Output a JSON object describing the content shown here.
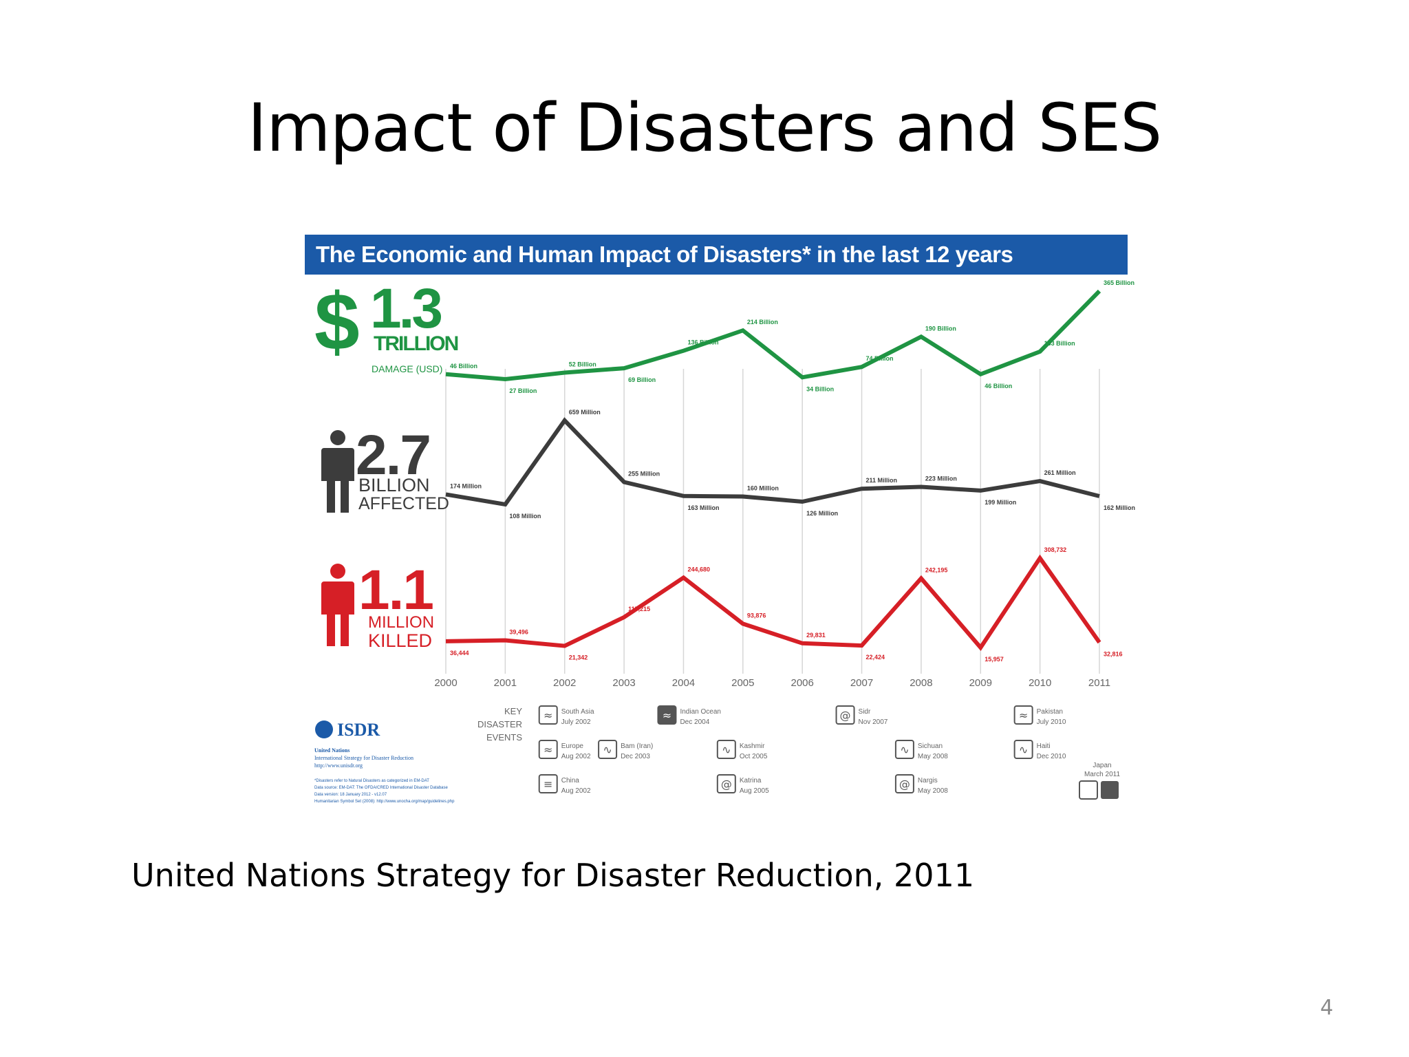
{
  "slide": {
    "title": "Impact of Disasters and SES",
    "caption": "United Nations Strategy for Disaster Reduction, 2011",
    "page_number": "4"
  },
  "chart_data": {
    "type": "line",
    "title": "The Economic and Human Impact of Disasters* in the last 12 years",
    "x": [
      "2000",
      "2001",
      "2002",
      "2003",
      "2004",
      "2005",
      "2006",
      "2007",
      "2008",
      "2009",
      "2010",
      "2011"
    ],
    "series": [
      {
        "key": "damage",
        "color": "#1f9443",
        "headline": {
          "symbol": "$",
          "value": "1.3",
          "unit": "TRILLION",
          "subtitle": "DAMAGE (USD)"
        },
        "values": [
          46,
          27,
          52,
          69,
          136,
          214,
          34,
          74,
          190,
          46,
          133,
          365
        ],
        "labels": [
          "46 Billion",
          "27 Billion",
          "52 Billion",
          "69 Billion",
          "136 Billion",
          "214 Billion",
          "34 Billion",
          "74 Billion",
          "190 Billion",
          "46 Billion",
          "133 Billion",
          "365 Billion"
        ]
      },
      {
        "key": "affected",
        "color": "#3c3c3c",
        "headline": {
          "value": "2.7",
          "unit": "BILLION",
          "subtitle": "AFFECTED"
        },
        "values": [
          174,
          108,
          659,
          255,
          163,
          160,
          126,
          211,
          223,
          199,
          261,
          162
        ],
        "labels": [
          "174 Million",
          "108 Million",
          "659 Million",
          "255 Million",
          "163 Million",
          "160 Million",
          "126 Million",
          "211 Million",
          "223 Million",
          "199 Million",
          "261 Million",
          "162 Million"
        ]
      },
      {
        "key": "killed",
        "color": "#d61f26",
        "headline": {
          "value": "1.1",
          "unit": "MILLION",
          "subtitle": "KILLED"
        },
        "values": [
          36444,
          39496,
          21342,
          115215,
          244680,
          93876,
          29831,
          22424,
          242195,
          15957,
          308732,
          32816
        ],
        "labels": [
          "36,444",
          "39,496",
          "21,342",
          "115,215",
          "244,680",
          "93,876",
          "29,831",
          "22,424",
          "242,195",
          "15,957",
          "308,732",
          "32,816"
        ]
      }
    ],
    "key_events_label": [
      "KEY",
      "DISASTER",
      "EVENTS"
    ],
    "key_events": [
      {
        "year": "2002",
        "icon": "flood-icon",
        "lines": [
          "South Asia",
          "July 2002"
        ]
      },
      {
        "year": "2002",
        "icon": "flood-icon",
        "lines": [
          "Europe",
          "Aug 2002"
        ]
      },
      {
        "year": "2002",
        "icon": "wind-icon",
        "lines": [
          "China",
          "Aug 2002"
        ]
      },
      {
        "year": "2003",
        "icon": "earthquake-icon",
        "lines": [
          "Bam (Iran)",
          "Dec 2003"
        ]
      },
      {
        "year": "2004",
        "icon": "tsunami-icon",
        "lines": [
          "Indian Ocean",
          "Dec 2004"
        ]
      },
      {
        "year": "2005",
        "icon": "earthquake-icon",
        "lines": [
          "Kashmir",
          "Oct 2005"
        ]
      },
      {
        "year": "2005",
        "icon": "cyclone-icon",
        "lines": [
          "Katrina",
          "Aug 2005"
        ]
      },
      {
        "year": "2007",
        "icon": "cyclone-icon",
        "lines": [
          "Sidr",
          "Nov 2007"
        ]
      },
      {
        "year": "2008",
        "icon": "earthquake-icon",
        "lines": [
          "Sichuan",
          "May 2008"
        ]
      },
      {
        "year": "2008",
        "icon": "cyclone-icon",
        "lines": [
          "Nargis",
          "May 2008"
        ]
      },
      {
        "year": "2010",
        "icon": "flood-icon",
        "lines": [
          "Pakistan",
          "July 2010"
        ]
      },
      {
        "year": "2010",
        "icon": "earthquake-icon",
        "lines": [
          "Haiti",
          "Dec 2010"
        ]
      },
      {
        "year": "2011",
        "icon": "earthquake-icon",
        "lines": [
          "Japan",
          "March 2011"
        ]
      }
    ],
    "source": {
      "logo": "ISDR",
      "org_lines": [
        "United Nations",
        "International Strategy for Disaster Reduction",
        "http://www.unisdr.org"
      ],
      "footnotes": [
        "*Disasters refer to Natural Disasters as categorized in EM-DAT",
        "Data source: EM-DAT: The OFDA/CRED International Disaster Database",
        "Data version: 18 January 2012 - v12.07",
        "Humanitarian Symbol Set (2008): http://www.unocha.org/map/guidelines.php"
      ]
    }
  }
}
